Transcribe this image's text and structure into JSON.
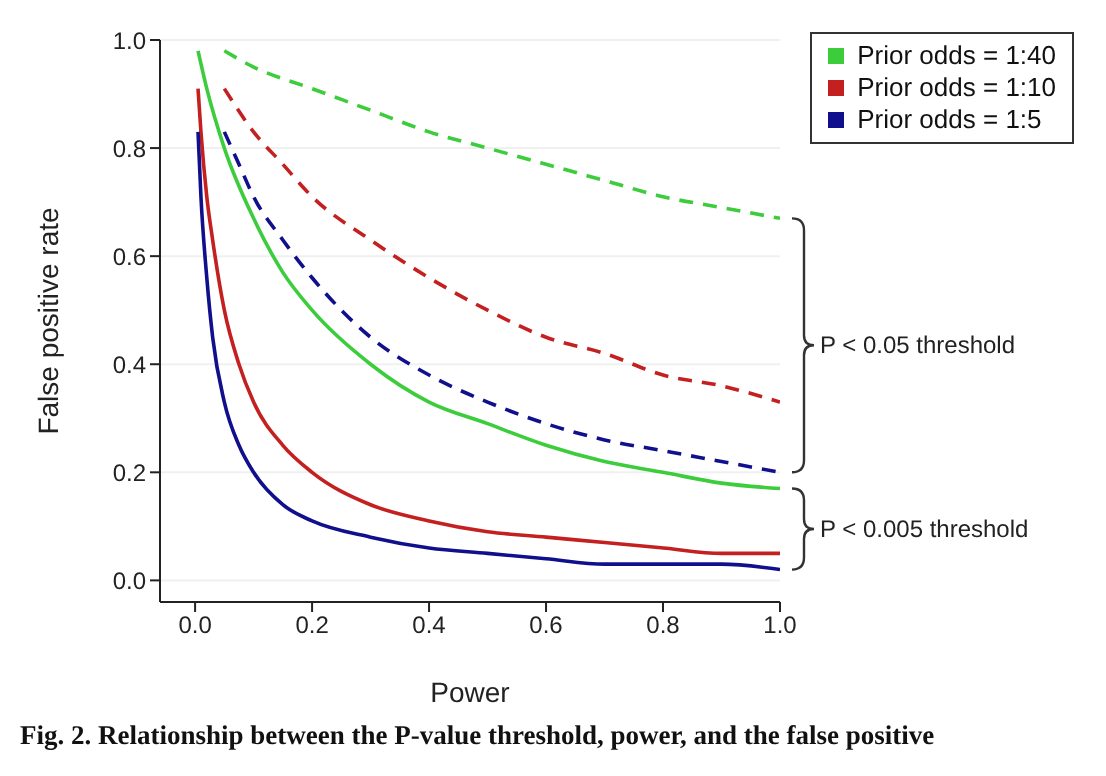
{
  "chart_data": {
    "type": "line",
    "xlabel": "Power",
    "ylabel": "False positive rate",
    "xlim": [
      -0.06,
      1.0
    ],
    "ylim": [
      -0.04,
      1.0
    ],
    "xticks": [
      {
        "value": 0,
        "label": "0.0"
      },
      {
        "value": 0.2,
        "label": "0.2"
      },
      {
        "value": 0.4,
        "label": "0.4"
      },
      {
        "value": 0.6,
        "label": "0.6"
      },
      {
        "value": 0.8,
        "label": "0.8"
      },
      {
        "value": 1,
        "label": "1.0"
      }
    ],
    "yticks": [
      {
        "value": 0,
        "label": "0.0"
      },
      {
        "value": 0.2,
        "label": "0.2"
      },
      {
        "value": 0.4,
        "label": "0.4"
      },
      {
        "value": 0.6,
        "label": "0.6"
      },
      {
        "value": 0.8,
        "label": "0.8"
      },
      {
        "value": 1,
        "label": "1.0"
      }
    ],
    "grid": "y",
    "legend": "top right",
    "marker": "none",
    "series": [
      {
        "name": "Prior odds = 1:40",
        "color": "#3ccc3c",
        "line_style": "solid",
        "x": [
          0.005,
          0.02,
          0.05,
          0.1,
          0.15,
          0.2,
          0.3,
          0.4,
          0.5,
          0.6,
          0.7,
          0.8,
          0.9,
          1.0
        ],
        "values": [
          0.98,
          0.91,
          0.8,
          0.67,
          0.57,
          0.5,
          0.4,
          0.33,
          0.29,
          0.25,
          0.22,
          0.2,
          0.18,
          0.17
        ]
      },
      {
        "name": "Prior odds = 1:10",
        "color": "#c42020",
        "line_style": "solid",
        "x": [
          0.005,
          0.01,
          0.02,
          0.03,
          0.05,
          0.075,
          0.1,
          0.15,
          0.2,
          0.3,
          0.4,
          0.5,
          0.6,
          0.7,
          0.8,
          0.9,
          1.0
        ],
        "values": [
          0.91,
          0.83,
          0.71,
          0.63,
          0.5,
          0.4,
          0.33,
          0.25,
          0.2,
          0.14,
          0.11,
          0.09,
          0.08,
          0.07,
          0.06,
          0.05,
          0.05
        ]
      },
      {
        "name": "Prior odds = 1:5",
        "color": "#10108c",
        "line_style": "solid",
        "x": [
          0.005,
          0.01,
          0.02,
          0.03,
          0.05,
          0.075,
          0.1,
          0.15,
          0.2,
          0.3,
          0.4,
          0.5,
          0.6,
          0.7,
          0.8,
          0.9,
          1.0
        ],
        "values": [
          0.83,
          0.71,
          0.56,
          0.45,
          0.33,
          0.25,
          0.2,
          0.14,
          0.11,
          0.08,
          0.06,
          0.05,
          0.04,
          0.03,
          0.03,
          0.03,
          0.02
        ]
      },
      {
        "color": "#3ccc3c",
        "line_style": "dashed",
        "x": [
          0.05,
          0.1,
          0.2,
          0.3,
          0.4,
          0.5,
          0.6,
          0.7,
          0.8,
          0.9,
          1.0
        ],
        "values": [
          0.98,
          0.95,
          0.91,
          0.87,
          0.83,
          0.8,
          0.77,
          0.74,
          0.71,
          0.69,
          0.67
        ]
      },
      {
        "color": "#c42020",
        "line_style": "dashed",
        "x": [
          0.05,
          0.1,
          0.15,
          0.2,
          0.3,
          0.4,
          0.5,
          0.6,
          0.7,
          0.8,
          0.9,
          1.0
        ],
        "values": [
          0.91,
          0.83,
          0.77,
          0.71,
          0.63,
          0.56,
          0.5,
          0.45,
          0.42,
          0.38,
          0.36,
          0.33
        ]
      },
      {
        "color": "#10108c",
        "line_style": "dashed",
        "x": [
          0.05,
          0.075,
          0.1,
          0.15,
          0.2,
          0.3,
          0.4,
          0.5,
          0.6,
          0.7,
          0.8,
          0.9,
          1.0
        ],
        "values": [
          0.83,
          0.77,
          0.71,
          0.63,
          0.56,
          0.45,
          0.38,
          0.33,
          0.29,
          0.26,
          0.24,
          0.22,
          0.2
        ]
      }
    ],
    "annotations": [
      "P < 0.05 threshold",
      "P < 0.005 threshold",
      "Fig. 2. Relationship between the P-value threshold, power, and the false positive"
    ]
  }
}
